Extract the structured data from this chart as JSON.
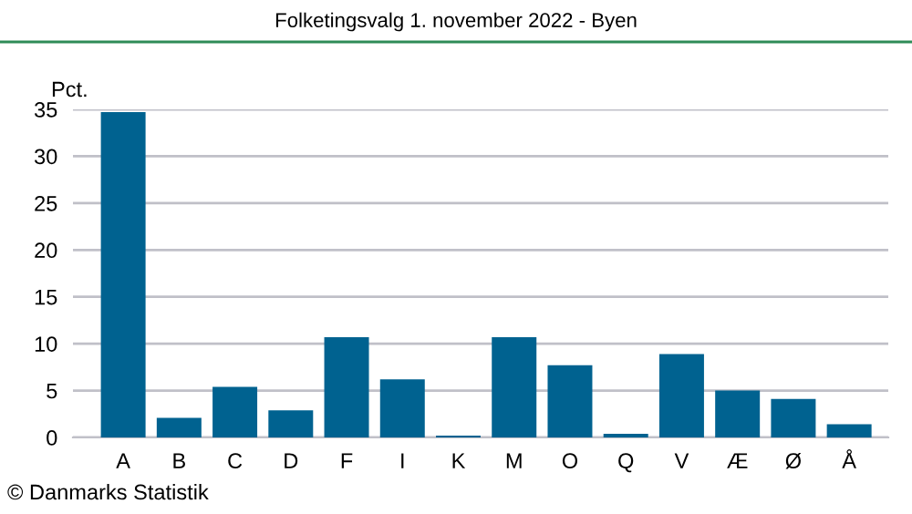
{
  "chart_data": {
    "type": "bar",
    "title": "Folketingsvalg 1. november 2022 - Byen",
    "ylabel": "Pct.",
    "categories": [
      "A",
      "B",
      "C",
      "D",
      "F",
      "I",
      "K",
      "M",
      "O",
      "Q",
      "V",
      "Æ",
      "Ø",
      "Å"
    ],
    "values": [
      34.7,
      2.1,
      5.4,
      2.9,
      10.7,
      6.2,
      0.2,
      10.7,
      7.7,
      0.4,
      8.9,
      5.0,
      4.1,
      1.4
    ],
    "color": "#006290",
    "ylim": [
      0,
      35
    ],
    "yticks": [
      0,
      5,
      10,
      15,
      20,
      25,
      30,
      35
    ],
    "grid": "y",
    "legend": false,
    "annotations": [
      "© Danmarks Statistik"
    ]
  }
}
